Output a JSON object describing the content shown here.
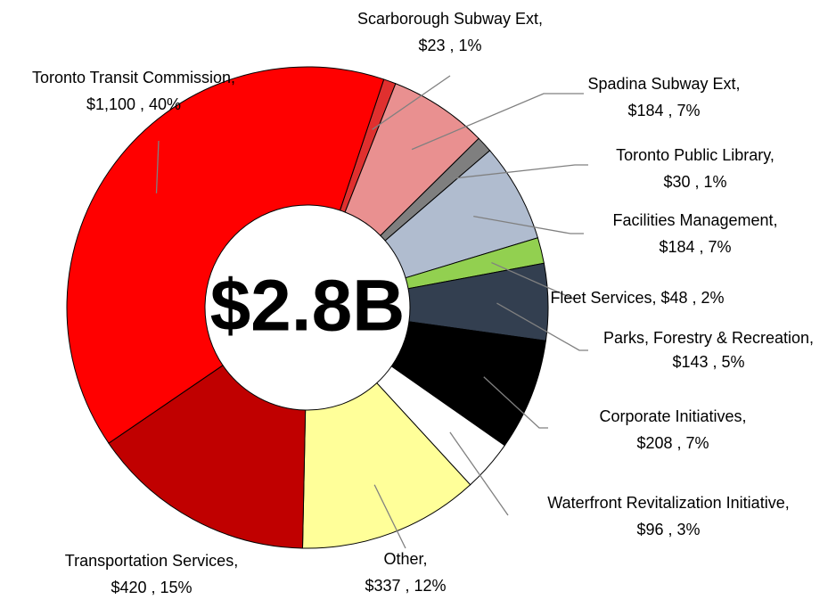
{
  "chart_data": {
    "type": "donut",
    "center_label": "$2.8B",
    "categories": [
      "Scarborough Subway Ext,",
      "Spadina Subway Ext,",
      "Toronto Public Library,",
      "Facilities Management,",
      "Fleet Services,",
      "Parks, Forestry & Recreation,",
      "Corporate Initiatives,",
      "Waterfront Revitalization Initiative,",
      "Other,",
      "Transportation Services,",
      "Toronto Transit Commission,"
    ],
    "values": [
      23,
      184,
      30,
      184,
      48,
      143,
      208,
      96,
      337,
      420,
      1100
    ],
    "value_labels": [
      "$23 , 1%",
      "$184 , 7%",
      "$30 , 1%",
      "$184 , 7%",
      "$48 , 2%",
      "$143 , 5%",
      "$208 , 7%",
      "$96 , 3%",
      "$337 , 12%",
      "$420 , 15%",
      "$1,100 , 40%"
    ],
    "colors": [
      "#e0302f",
      "#e99090",
      "#7f7f7f",
      "#b0bccf",
      "#92d050",
      "#333f50",
      "#000000",
      "#ffffff",
      "#ffff99",
      "#c00000",
      "#ff0000"
    ]
  }
}
